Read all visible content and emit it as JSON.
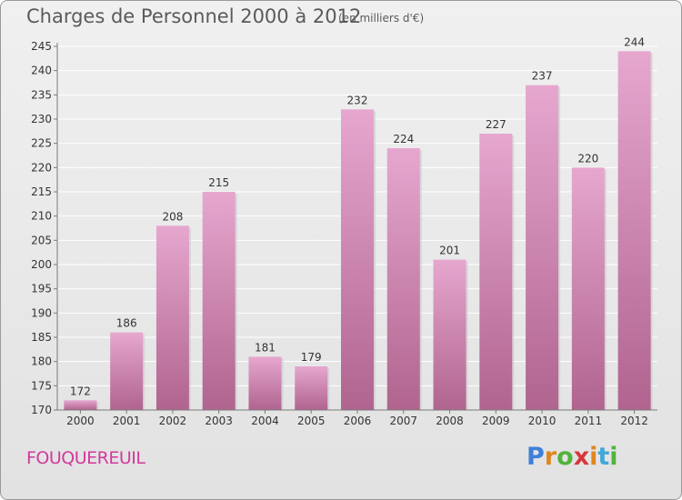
{
  "header": {
    "title": "Charges de Personnel 2000 à 2012",
    "subtitle": "(en milliers d'€)"
  },
  "commune": "FOUQUEREUIL",
  "brand": {
    "letters": [
      "P",
      "r",
      "o",
      "x",
      "i",
      "t",
      "i"
    ],
    "colors": [
      "#3f7fd8",
      "#e0861f",
      "#52b33e",
      "#d7383c",
      "#e0861f",
      "#3fa8d8",
      "#52b33e"
    ]
  },
  "colors": {
    "bar_light": "#e6a7cf",
    "bar_dark": "#b0648f",
    "axis": "#7a7a7a",
    "grid": "#ffffff",
    "text": "#333333"
  },
  "chart_data": {
    "type": "bar",
    "title": "Charges de Personnel 2000 à 2012",
    "subtitle": "(en milliers d'€)",
    "categories": [
      "2000",
      "2001",
      "2002",
      "2003",
      "2004",
      "2005",
      "2006",
      "2007",
      "2008",
      "2009",
      "2010",
      "2011",
      "2012"
    ],
    "values": [
      172,
      186,
      208,
      215,
      181,
      179,
      232,
      224,
      201,
      227,
      237,
      220,
      244
    ],
    "ylim": [
      170,
      245
    ],
    "yticks": [
      170,
      175,
      180,
      185,
      190,
      195,
      200,
      205,
      210,
      215,
      220,
      225,
      230,
      235,
      240,
      245
    ],
    "grid": true,
    "legend": "none"
  }
}
